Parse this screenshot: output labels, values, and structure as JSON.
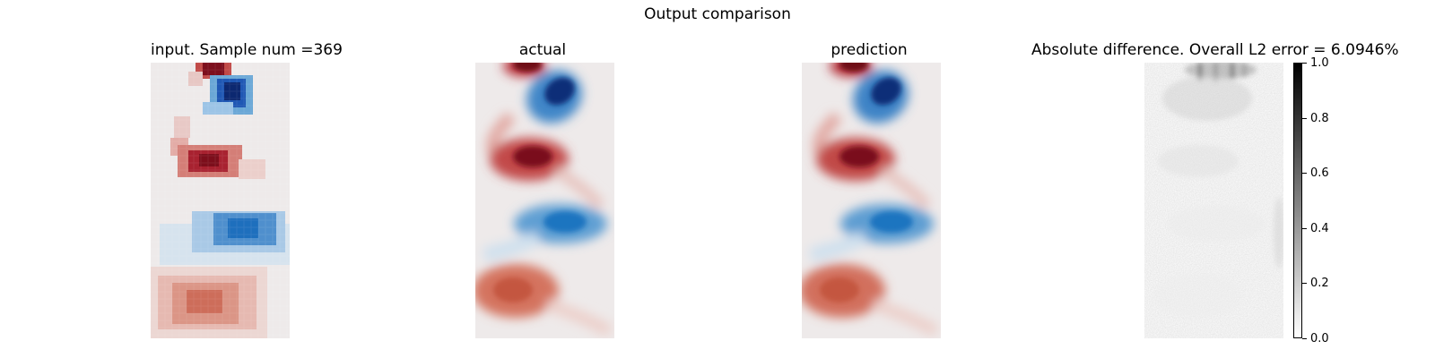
{
  "figure": {
    "suptitle": "Output comparison"
  },
  "panels": [
    {
      "title": "input. Sample num =369"
    },
    {
      "title": "actual"
    },
    {
      "title": "prediction"
    },
    {
      "title": "Absolute difference. Overall L2 error = 6.0946%"
    }
  ],
  "chart_data": {
    "type": "heatmap",
    "title": "Output comparison",
    "fields": [
      {
        "name": "input. Sample num =369",
        "sample_num": 369,
        "colormap": "diverging red-white-blue",
        "resolution": "coarse (pixelated)"
      },
      {
        "name": "actual",
        "colormap": "diverging red-white-blue"
      },
      {
        "name": "prediction",
        "colormap": "diverging red-white-blue"
      },
      {
        "name": "Absolute difference. Overall L2 error = 6.0946%",
        "colormap": "greys",
        "l2_error_percent": 6.0946
      }
    ],
    "colorbar": {
      "range": [
        0.0,
        1.0
      ],
      "ticks": [
        "0.0",
        "0.2",
        "0.4",
        "0.6",
        "0.8",
        "1.0"
      ],
      "colors": {
        "low": "#ffffff",
        "high": "#000000"
      }
    },
    "colors": {
      "positive": "#8b0f1f",
      "negative": "#0d2c7a",
      "neutral": "#eeeaea"
    }
  }
}
